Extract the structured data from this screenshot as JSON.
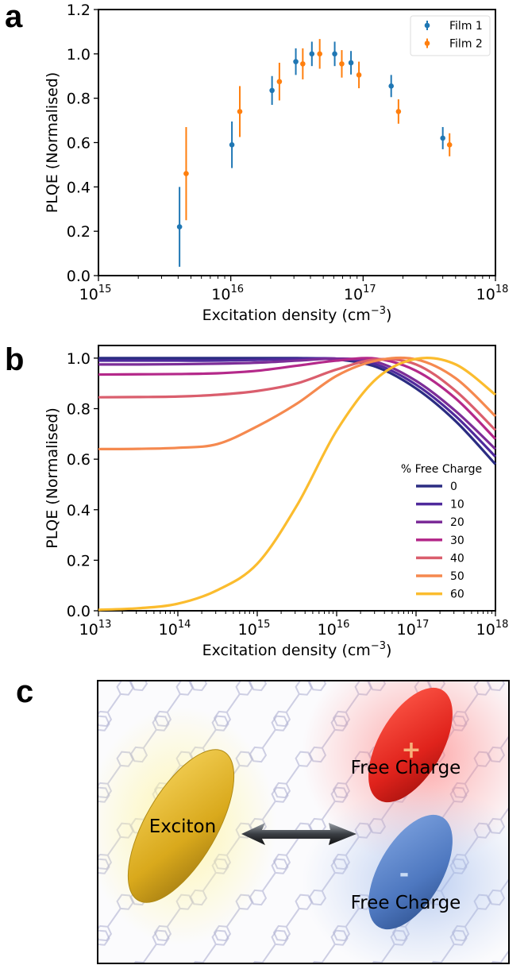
{
  "panel_labels": {
    "a": "a",
    "b": "b",
    "c": "c"
  },
  "chart_data": [
    {
      "type": "scatter",
      "panel": "a",
      "title": "",
      "xlabel": {
        "text": "Excitation density (cm",
        "sup": "−3",
        "close": ")"
      },
      "ylabel": "PLQE (Normalised)",
      "xscale": "log",
      "xlim_exp": [
        15,
        18
      ],
      "ylim": [
        0,
        1.2
      ],
      "xticks": [
        {
          "base": "10",
          "exp": "15"
        },
        {
          "base": "10",
          "exp": "16"
        },
        {
          "base": "10",
          "exp": "17"
        },
        {
          "base": "10",
          "exp": "18"
        }
      ],
      "yticks": [
        "0.0",
        "0.2",
        "0.4",
        "0.6",
        "0.8",
        "1.0",
        "1.2"
      ],
      "legend_position": "top-right",
      "series": [
        {
          "name": "Film 1",
          "color": "#1f77b4",
          "x": [
            4100000000000000.0,
            1.02e+16,
            2.05e+16,
            3.1e+16,
            4.1e+16,
            6.1e+16,
            8.1e+16,
            1.63e+17,
            4e+17
          ],
          "y": [
            0.22,
            0.59,
            0.835,
            0.965,
            1.0,
            1.0,
            0.96,
            0.855,
            0.62
          ],
          "yerr": [
            0.18,
            0.105,
            0.065,
            0.06,
            0.055,
            0.055,
            0.053,
            0.05,
            0.05
          ]
        },
        {
          "name": "Film 2",
          "color": "#ff7f0e",
          "x": [
            4600000000000000.0,
            1.17e+16,
            2.33e+16,
            3.5e+16,
            4.7e+16,
            6.9e+16,
            9.3e+16,
            1.85e+17,
            4.5e+17
          ],
          "y": [
            0.46,
            0.74,
            0.875,
            0.955,
            1.0,
            0.955,
            0.905,
            0.74,
            0.59
          ],
          "yerr": [
            0.21,
            0.115,
            0.085,
            0.07,
            0.067,
            0.062,
            0.06,
            0.055,
            0.052
          ]
        }
      ]
    },
    {
      "type": "line",
      "panel": "b",
      "title": "",
      "xlabel": {
        "text": "Excitation density (cm",
        "sup": "−3",
        "close": ")"
      },
      "ylabel": "PLQE (Normalised)",
      "xscale": "log",
      "xlim_exp": [
        13,
        18
      ],
      "ylim": [
        0,
        1.05
      ],
      "xticks": [
        {
          "base": "10",
          "exp": "13"
        },
        {
          "base": "10",
          "exp": "14"
        },
        {
          "base": "10",
          "exp": "15"
        },
        {
          "base": "10",
          "exp": "16"
        },
        {
          "base": "10",
          "exp": "17"
        },
        {
          "base": "10",
          "exp": "18"
        }
      ],
      "yticks": [
        "0.0",
        "0.2",
        "0.4",
        "0.6",
        "0.8",
        "1.0"
      ],
      "legend_title": "% Free Charge",
      "legend_position": "lower-right",
      "x_exp": [
        13,
        13.5,
        14,
        14.5,
        15,
        15.5,
        16,
        16.5,
        17,
        17.5,
        18
      ],
      "series": [
        {
          "name": "0",
          "color": "#2b2c82",
          "values": [
            1.0,
            1.0,
            1.0,
            1.0,
            1.0,
            1.0,
            0.995,
            0.965,
            0.88,
            0.75,
            0.58
          ]
        },
        {
          "name": "10",
          "color": "#4f2a9c",
          "values": [
            0.99,
            0.99,
            0.99,
            0.99,
            0.993,
            0.997,
            0.998,
            0.975,
            0.895,
            0.77,
            0.61
          ]
        },
        {
          "name": "20",
          "color": "#7c2d98",
          "values": [
            0.975,
            0.975,
            0.976,
            0.978,
            0.982,
            0.99,
            0.998,
            0.985,
            0.91,
            0.79,
            0.64
          ]
        },
        {
          "name": "30",
          "color": "#b4298a",
          "values": [
            0.935,
            0.936,
            0.937,
            0.94,
            0.95,
            0.97,
            0.99,
            0.998,
            0.95,
            0.84,
            0.68
          ]
        },
        {
          "name": "40",
          "color": "#da5e6d",
          "values": [
            0.845,
            0.846,
            0.848,
            0.855,
            0.87,
            0.9,
            0.955,
            0.995,
            0.975,
            0.87,
            0.715
          ]
        },
        {
          "name": "50",
          "color": "#f5894f",
          "values": [
            0.64,
            0.641,
            0.645,
            0.66,
            0.73,
            0.82,
            0.93,
            0.99,
            0.995,
            0.92,
            0.77
          ]
        },
        {
          "name": "60",
          "color": "#fbbc2e",
          "values": [
            0.004,
            0.01,
            0.028,
            0.082,
            0.186,
            0.417,
            0.713,
            0.918,
            0.997,
            0.975,
            0.855
          ]
        }
      ]
    }
  ],
  "illustration": {
    "exciton_label": "Exciton",
    "free_charge_top_label": "Free Charge",
    "free_charge_bottom_label": "Free Charge",
    "plus_sign": "+",
    "minus_sign": "-"
  }
}
